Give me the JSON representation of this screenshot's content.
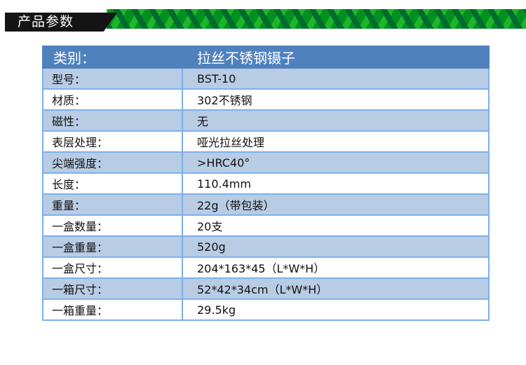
{
  "section_title": "产品参数",
  "header": {
    "label": "类别：",
    "value": "拉丝不锈钢镊子"
  },
  "rows": [
    {
      "label": "型号：",
      "value": "BST-10"
    },
    {
      "label": "材质：",
      "value": "302不锈钢"
    },
    {
      "label": "磁性：",
      "value": "无"
    },
    {
      "label": "表层处理：",
      "value": "哑光拉丝处理"
    },
    {
      "label": "尖端强度：",
      "value": ">HRC40°"
    },
    {
      "label": "长度：",
      "value": "110.4mm"
    },
    {
      "label": "重量：",
      "value": "22g（带包装）"
    },
    {
      "label": "一盒数量：",
      "value": "20支"
    },
    {
      "label": "一盒重量：",
      "value": "520g"
    },
    {
      "label": "一盒尺寸：",
      "value": "204*163*45（L*W*H）"
    },
    {
      "label": "一箱尺寸：",
      "value": "52*42*34cm（L*W*H）"
    },
    {
      "label": "一箱重量：",
      "value": "29.5kg"
    }
  ],
  "colors": {
    "header": "#4f81bd",
    "alt_row": "#b8cce4",
    "banner_green": "#009020"
  }
}
